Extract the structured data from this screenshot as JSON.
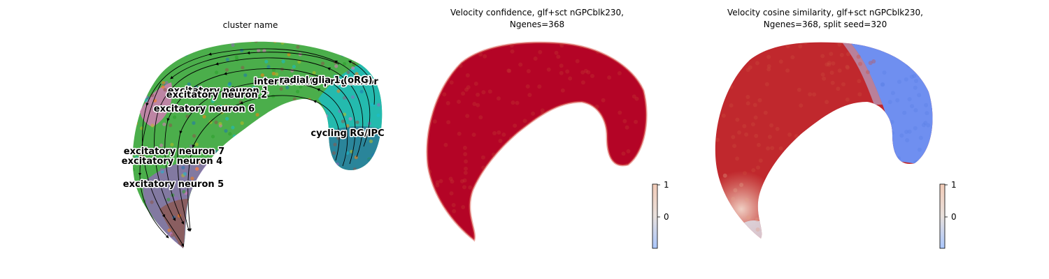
{
  "colors": {
    "conf_red": "#b40426",
    "cos_red": "#c0282d",
    "cos_blue": "#6f8ff0",
    "cbar_top": "#f2cbb7",
    "cbar_bottom": "#aac7fd",
    "arrow": "#000000"
  },
  "chart_data": [
    {
      "type": "scatter",
      "subtype": "velocity-stream-embedding",
      "title": "cluster name",
      "clusters": [
        {
          "name": "radial glia 1 (oRG)",
          "color": "#17becf"
        },
        {
          "name": "intermediate progenitor",
          "color": "#bcbd22"
        },
        {
          "name": "excitatory neuron 1",
          "color": "#2ca02c"
        },
        {
          "name": "excitatory neuron 2",
          "color": "#ff7f0e"
        },
        {
          "name": "excitatory neuron 6",
          "color": "#e377c2"
        },
        {
          "name": "cycling RG/IPC",
          "color": "#1f77b4"
        },
        {
          "name": "excitatory neuron 7",
          "color": "#9467bd"
        },
        {
          "name": "excitatory neuron 4",
          "color": "#8c564b"
        },
        {
          "name": "excitatory neuron 5",
          "color": "#8c564b"
        }
      ],
      "grid": false,
      "axes": "off"
    },
    {
      "type": "scatter",
      "title_lines": [
        "Velocity confidence, glf+sct nGPCblk230,",
        "Ngenes=368"
      ],
      "colormap": "coolwarm",
      "colorbar": {
        "ticks": [
          1,
          0
        ],
        "range": [
          -1,
          1
        ]
      },
      "values_summary": "all cells near 1 (uniform red)",
      "grid": false,
      "axes": "off"
    },
    {
      "type": "scatter",
      "title_lines": [
        "Velocity cosine similarity, glf+sct nGPCblk230,",
        "Ngenes=368, split seed=320"
      ],
      "colormap": "coolwarm",
      "colorbar": {
        "ticks": [
          1,
          0
        ],
        "range": [
          -1,
          1
        ]
      },
      "values_summary": "red (~1) across the main body, blue (~-0.6) on the right hook, fading toward white at the bottom tip",
      "grid": false,
      "axes": "off"
    }
  ]
}
